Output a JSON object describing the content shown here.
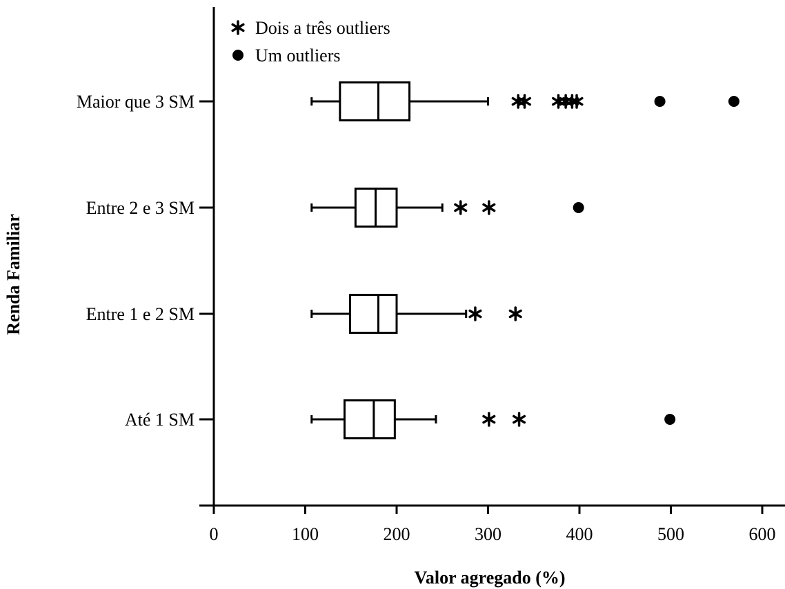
{
  "chart_data": {
    "type": "boxplot",
    "orientation": "horizontal",
    "xlabel": "Valor agregado (%)",
    "ylabel": "Renda Familiar",
    "xlim": [
      0,
      600
    ],
    "xticks": [
      0,
      100,
      200,
      300,
      400,
      500,
      600
    ],
    "grid": false,
    "legend_position": "top-left",
    "legend": [
      {
        "marker": "asterisk",
        "label": "Dois a três outliers"
      },
      {
        "marker": "circle",
        "label": "Um outliers"
      }
    ],
    "categories": [
      "Maior que 3  SM",
      "Entre 2 e 3  SM",
      "Entre 1 e 2  SM",
      "Até 1 SM"
    ],
    "boxes": [
      {
        "category": "Maior que 3  SM",
        "whisker_low": 107,
        "q1": 138,
        "median": 180,
        "q3": 214,
        "whisker_high": 300,
        "outliers_asterisk": [
          333,
          340,
          377,
          385,
          392,
          397
        ],
        "outliers_circle": [
          488,
          569
        ]
      },
      {
        "category": "Entre 2 e 3  SM",
        "whisker_low": 107,
        "q1": 155,
        "median": 177,
        "q3": 200,
        "whisker_high": 250,
        "outliers_asterisk": [
          270,
          301
        ],
        "outliers_circle": [
          399
        ]
      },
      {
        "category": "Entre 1 e 2  SM",
        "whisker_low": 107,
        "q1": 149,
        "median": 180,
        "q3": 200,
        "whisker_high": 276,
        "outliers_asterisk": [
          286,
          330
        ],
        "outliers_circle": []
      },
      {
        "category": "Até 1 SM",
        "whisker_low": 107,
        "q1": 143,
        "median": 175,
        "q3": 198,
        "whisker_high": 243,
        "outliers_asterisk": [
          301,
          334
        ],
        "outliers_circle": [
          499
        ]
      }
    ]
  }
}
